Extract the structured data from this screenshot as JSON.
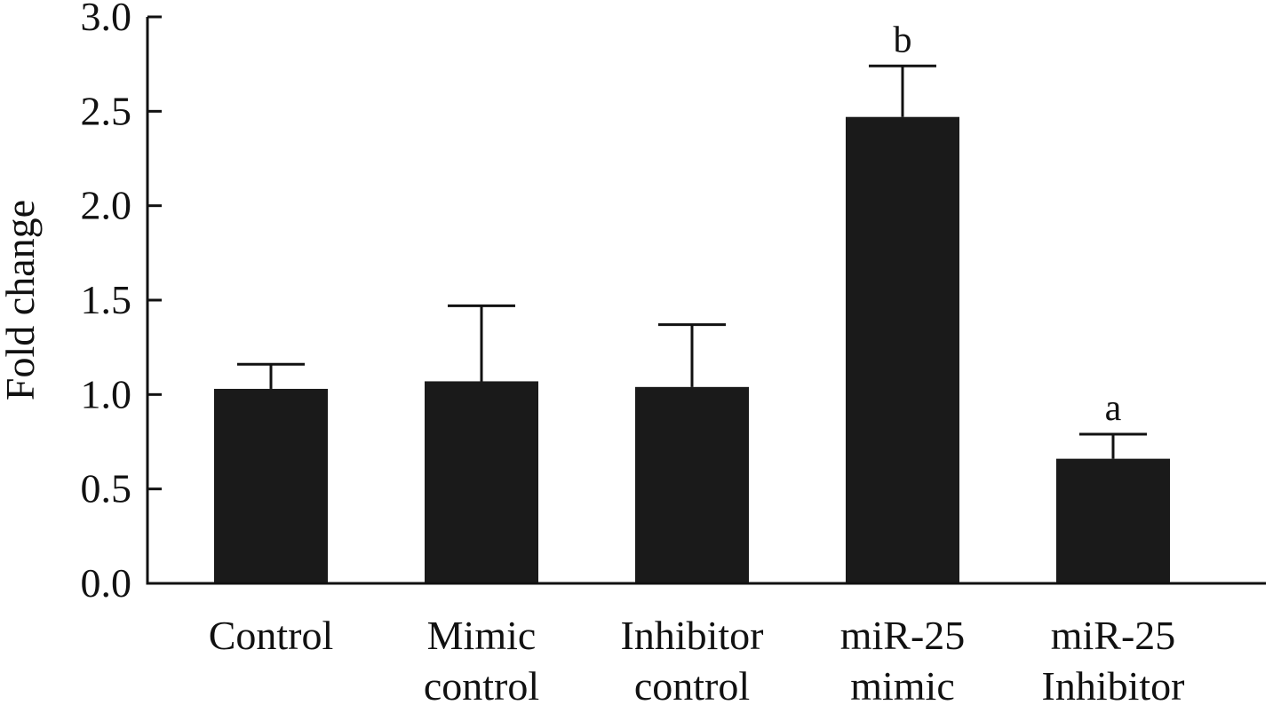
{
  "chart_data": {
    "type": "bar",
    "title": "",
    "xlabel": "",
    "ylabel": "Fold change",
    "ylim": [
      0,
      3.0
    ],
    "yticks": [
      "0.0",
      "0.5",
      "1.0",
      "1.5",
      "2.0",
      "2.5",
      "3.0"
    ],
    "grid": false,
    "legend": "none",
    "categories": [
      [
        "Control"
      ],
      [
        "Mimic",
        "control"
      ],
      [
        "Inhibitor",
        "control"
      ],
      [
        "miR-25",
        "mimic"
      ],
      [
        "miR-25",
        "Inhibitor"
      ]
    ],
    "values": [
      1.03,
      1.07,
      1.04,
      2.47,
      0.66
    ],
    "error_upper": [
      1.16,
      1.47,
      1.37,
      2.74,
      0.79
    ],
    "annotations": [
      "",
      "",
      "",
      "b",
      "a"
    ],
    "colors": {
      "bar": "#1a1a1a",
      "axis": "#111111",
      "background": "#ffffff"
    }
  }
}
